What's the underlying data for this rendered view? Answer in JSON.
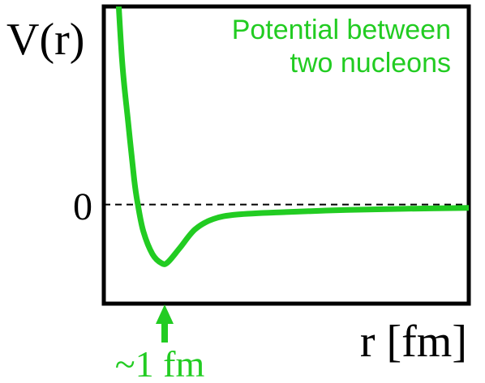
{
  "chart_data": {
    "type": "line",
    "title": "",
    "xlabel": "r [fm]",
    "ylabel": "V(r)",
    "y_tick_labels": [
      "0"
    ],
    "legend": [],
    "annotations": {
      "curve_label_line1": "Potential between",
      "curve_label_line2": "two nucleons",
      "minimum_marker": "~1 fm"
    },
    "series": [
      {
        "points": [
          [
            0.2,
            6.0
          ],
          [
            0.3,
            3.5
          ],
          [
            0.4,
            2.0
          ],
          [
            0.5,
            0.6
          ],
          [
            0.56,
            0.0
          ],
          [
            0.65,
            -0.65
          ],
          [
            0.8,
            -1.2
          ],
          [
            0.95,
            -1.42
          ],
          [
            1.05,
            -1.4
          ],
          [
            1.25,
            -1.05
          ],
          [
            1.5,
            -0.6
          ],
          [
            1.8,
            -0.35
          ],
          [
            2.2,
            -0.24
          ],
          [
            3.0,
            -0.18
          ],
          [
            4.0,
            -0.13
          ],
          [
            5.0,
            -0.1
          ],
          [
            6.0,
            -0.08
          ]
        ]
      }
    ],
    "xlim": [
      0,
      6
    ],
    "ylim": [
      -2.4,
      4.8
    ],
    "zero_line": "dashed",
    "grid": false,
    "colors": {
      "curve": "#22cc22",
      "text": "#000000"
    }
  }
}
